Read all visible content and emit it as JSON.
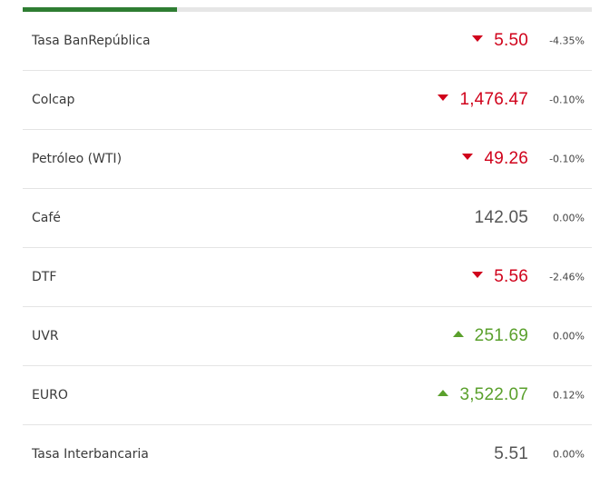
{
  "colors": {
    "down": "#d0021b",
    "up": "#5aa02c",
    "flat": "#555555",
    "tab_active": "#2e7d32"
  },
  "indicators": [
    {
      "label": "Tasa BanRepública",
      "value": "5.50",
      "change": "-4.35%",
      "trend": "down"
    },
    {
      "label": "Colcap",
      "value": "1,476.47",
      "change": "-0.10%",
      "trend": "down"
    },
    {
      "label": "Petróleo (WTI)",
      "value": "49.26",
      "change": "-0.10%",
      "trend": "down"
    },
    {
      "label": "Café",
      "value": "142.05",
      "change": "0.00%",
      "trend": "flat"
    },
    {
      "label": "DTF",
      "value": "5.56",
      "change": "-2.46%",
      "trend": "down"
    },
    {
      "label": "UVR",
      "value": "251.69",
      "change": "0.00%",
      "trend": "up"
    },
    {
      "label": "EURO",
      "value": "3,522.07",
      "change": "0.12%",
      "trend": "up"
    },
    {
      "label": "Tasa Interbancaria",
      "value": "5.51",
      "change": "0.00%",
      "trend": "flat"
    }
  ]
}
